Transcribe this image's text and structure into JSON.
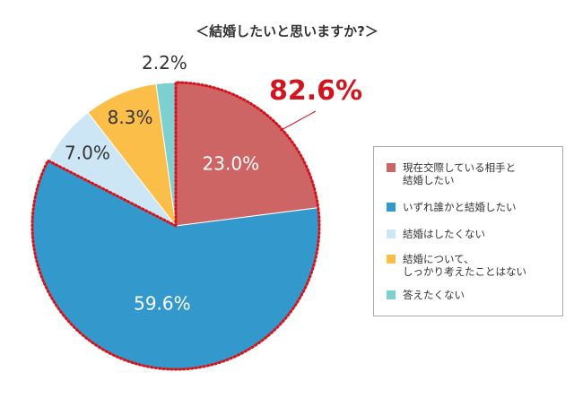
{
  "chart_data": {
    "type": "pie",
    "title": "＜結婚したいと思いますか?＞",
    "categories": [
      "現在交際している相手と\n結婚したい",
      "いずれ誰かと結婚したい",
      "結婚はしたくない",
      "結婚について、\nしっかり考えたことはない",
      "答えたくない"
    ],
    "values": [
      23.0,
      59.6,
      7.0,
      8.3,
      2.2
    ],
    "value_labels": [
      "23.0%",
      "59.6%",
      "7.0%",
      "8.3%",
      "2.2%"
    ],
    "colors": [
      "#cd6565",
      "#3399cc",
      "#cce6f6",
      "#fbbe49",
      "#7ecfcf"
    ],
    "label_colors": [
      "#ffffff",
      "#ffffff",
      "#333333",
      "#333333",
      "#333333"
    ],
    "highlight": {
      "label": "82.6%",
      "value": 82.6,
      "includes": [
        "現在交際している相手と\n結婚したい",
        "いずれ誰かと結婚したい"
      ],
      "color": "#d4141c",
      "style": "dotted-outline"
    },
    "legend_position": "right",
    "start": "12 o'clock",
    "direction": "clockwise"
  }
}
